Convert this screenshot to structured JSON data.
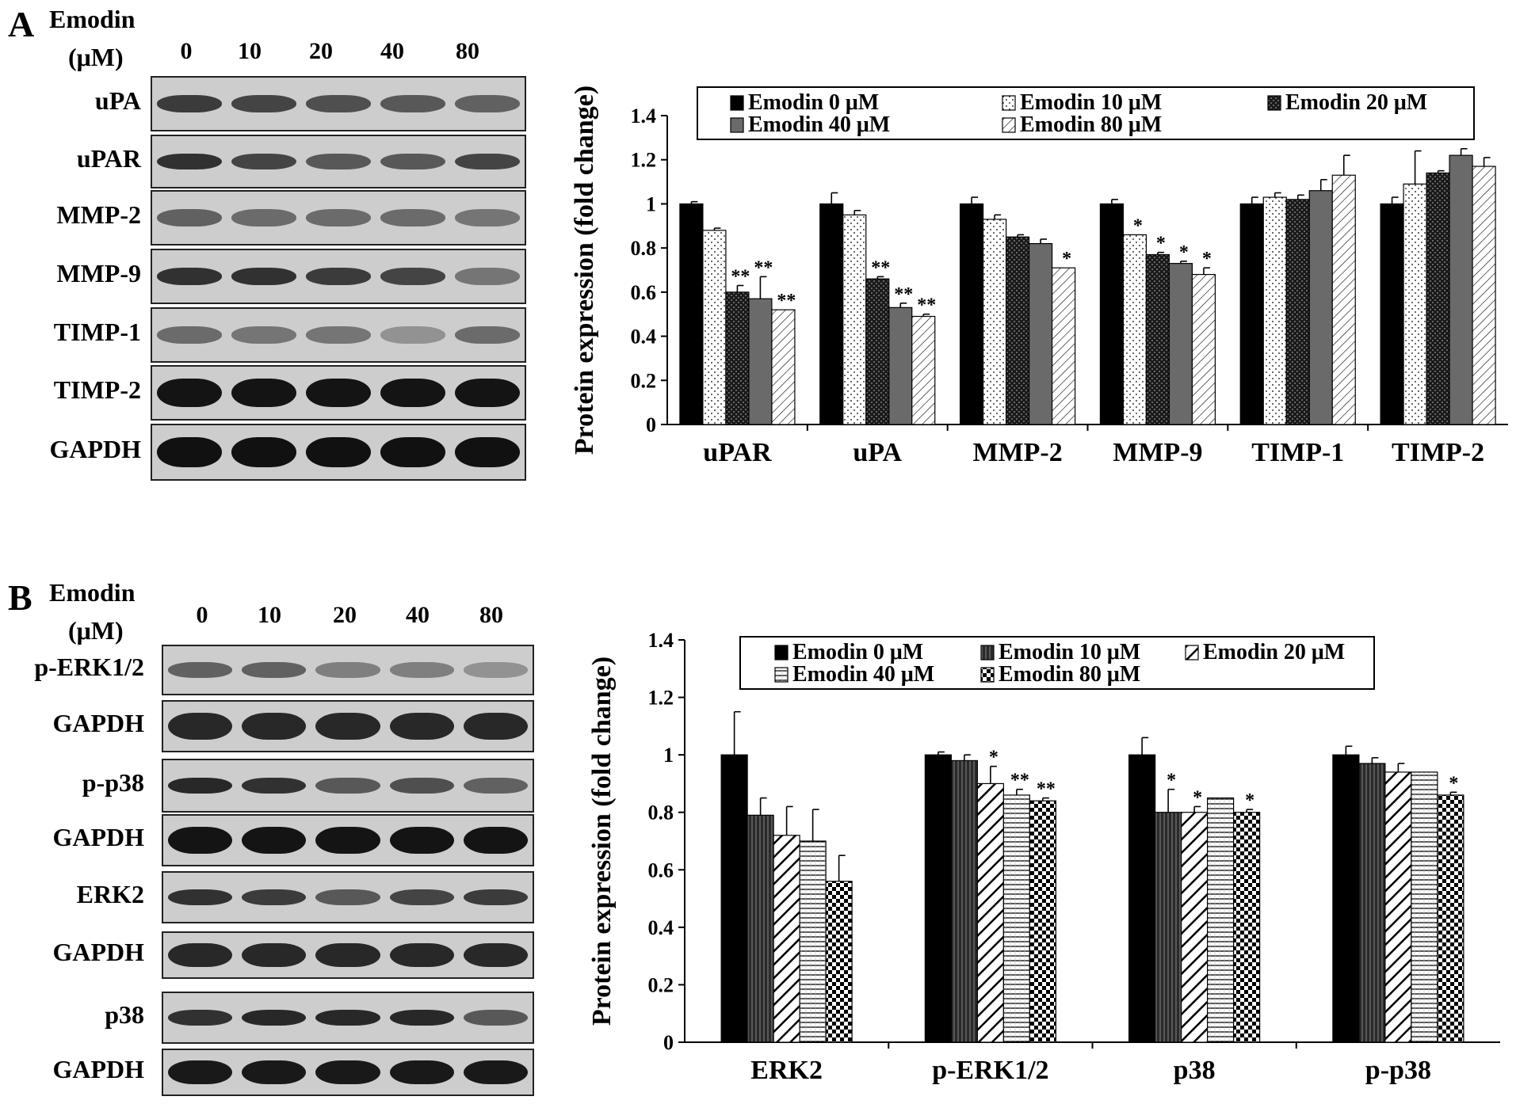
{
  "panelA": {
    "letter": "A",
    "treatment": "Emodin",
    "unit": "(μM)",
    "lanes": [
      "0",
      "10",
      "20",
      "40",
      "80"
    ],
    "blots": [
      "uPA",
      "uPAR",
      "MMP-2",
      "MMP-9",
      "TIMP-1",
      "TIMP-2",
      "GAPDH"
    ]
  },
  "panelB": {
    "letter": "B",
    "treatment": "Emodin",
    "unit": "(μM)",
    "lanes": [
      "0",
      "10",
      "20",
      "40",
      "80"
    ],
    "blots": [
      "p-ERK1/2",
      "GAPDH",
      "p-p38",
      "GAPDH",
      "ERK2",
      "GAPDH",
      "p38",
      "GAPDH"
    ]
  },
  "chart_data": [
    {
      "type": "bar",
      "ylabel": "Protein expression (fold change)",
      "ylim": [
        0,
        1.4
      ],
      "yticks": [
        "0",
        "0.2",
        "0.4",
        "0.6",
        "0.8",
        "1",
        "1.2",
        "1.4"
      ],
      "categories": [
        "uPAR",
        "uPA",
        "MMP-2",
        "MMP-9",
        "TIMP-1",
        "TIMP-2"
      ],
      "legend": [
        "Emodin 0 μM",
        "Emodin 10 μM",
        "Emodin 20 μM",
        "Emodin 40 μM",
        "Emodin 80 μM"
      ],
      "series": [
        {
          "name": "Emodin 0 μM",
          "values": [
            1.0,
            1.0,
            1.0,
            1.0,
            1.0,
            1.0
          ],
          "errors": [
            0.01,
            0.05,
            0.03,
            0.02,
            0.03,
            0.03
          ],
          "sig": [
            "",
            "",
            "",
            "",
            "",
            ""
          ]
        },
        {
          "name": "Emodin 10 μM",
          "values": [
            0.88,
            0.95,
            0.93,
            0.86,
            1.03,
            1.09
          ],
          "errors": [
            0.01,
            0.02,
            0.02,
            0.0,
            0.02,
            0.15
          ],
          "sig": [
            "",
            "",
            "",
            "*",
            "",
            ""
          ]
        },
        {
          "name": "Emodin 20 μM",
          "values": [
            0.6,
            0.66,
            0.85,
            0.77,
            1.02,
            1.14
          ],
          "errors": [
            0.03,
            0.01,
            0.01,
            0.01,
            0.02,
            0.01
          ],
          "sig": [
            "**",
            "**",
            "",
            "*",
            "",
            ""
          ]
        },
        {
          "name": "Emodin 40 μM",
          "values": [
            0.57,
            0.53,
            0.82,
            0.73,
            1.06,
            1.22
          ],
          "errors": [
            0.1,
            0.02,
            0.02,
            0.01,
            0.05,
            0.03
          ],
          "sig": [
            "**",
            "**",
            "",
            "*",
            "",
            ""
          ]
        },
        {
          "name": "Emodin 80 μM",
          "values": [
            0.52,
            0.49,
            0.71,
            0.68,
            1.13,
            1.17
          ],
          "errors": [
            0.0,
            0.01,
            0.0,
            0.03,
            0.09,
            0.04
          ],
          "sig": [
            "**",
            "**",
            "*",
            "*",
            "",
            ""
          ]
        }
      ],
      "colors": {
        "s0": "#000000",
        "s4_line": "#000000"
      }
    },
    {
      "type": "bar",
      "ylabel": "Protein expression (fold change)",
      "ylim": [
        0,
        1.4
      ],
      "yticks": [
        "0",
        "0.2",
        "0.4",
        "0.6",
        "0.8",
        "1",
        "1.2",
        "1.4"
      ],
      "categories": [
        "ERK2",
        "p-ERK1/2",
        "p38",
        "p-p38"
      ],
      "legend": [
        "Emodin 0 μM",
        "Emodin 10 μM",
        "Emodin 20 μM",
        "Emodin 40 μM",
        "Emodin 80 μM"
      ],
      "series": [
        {
          "name": "Emodin 0 μM",
          "values": [
            1.0,
            1.0,
            1.0,
            1.0
          ],
          "errors": [
            0.15,
            0.01,
            0.06,
            0.03
          ],
          "sig": [
            "",
            "",
            "",
            ""
          ]
        },
        {
          "name": "Emodin 10 μM",
          "values": [
            0.79,
            0.98,
            0.8,
            0.97
          ],
          "errors": [
            0.06,
            0.02,
            0.08,
            0.02
          ],
          "sig": [
            "",
            "",
            "*",
            ""
          ]
        },
        {
          "name": "Emodin 20 μM",
          "values": [
            0.72,
            0.9,
            0.8,
            0.94
          ],
          "errors": [
            0.1,
            0.06,
            0.02,
            0.03
          ],
          "sig": [
            "",
            "*",
            "*",
            ""
          ]
        },
        {
          "name": "Emodin 40 μM",
          "values": [
            0.7,
            0.86,
            0.85,
            0.94
          ],
          "errors": [
            0.11,
            0.02,
            0.0,
            0.0
          ],
          "sig": [
            "",
            "**",
            "",
            ""
          ]
        },
        {
          "name": "Emodin 80 μM",
          "values": [
            0.56,
            0.84,
            0.8,
            0.86
          ],
          "errors": [
            0.09,
            0.01,
            0.01,
            0.01
          ],
          "sig": [
            "",
            "**",
            "*",
            "*"
          ]
        }
      ]
    }
  ]
}
